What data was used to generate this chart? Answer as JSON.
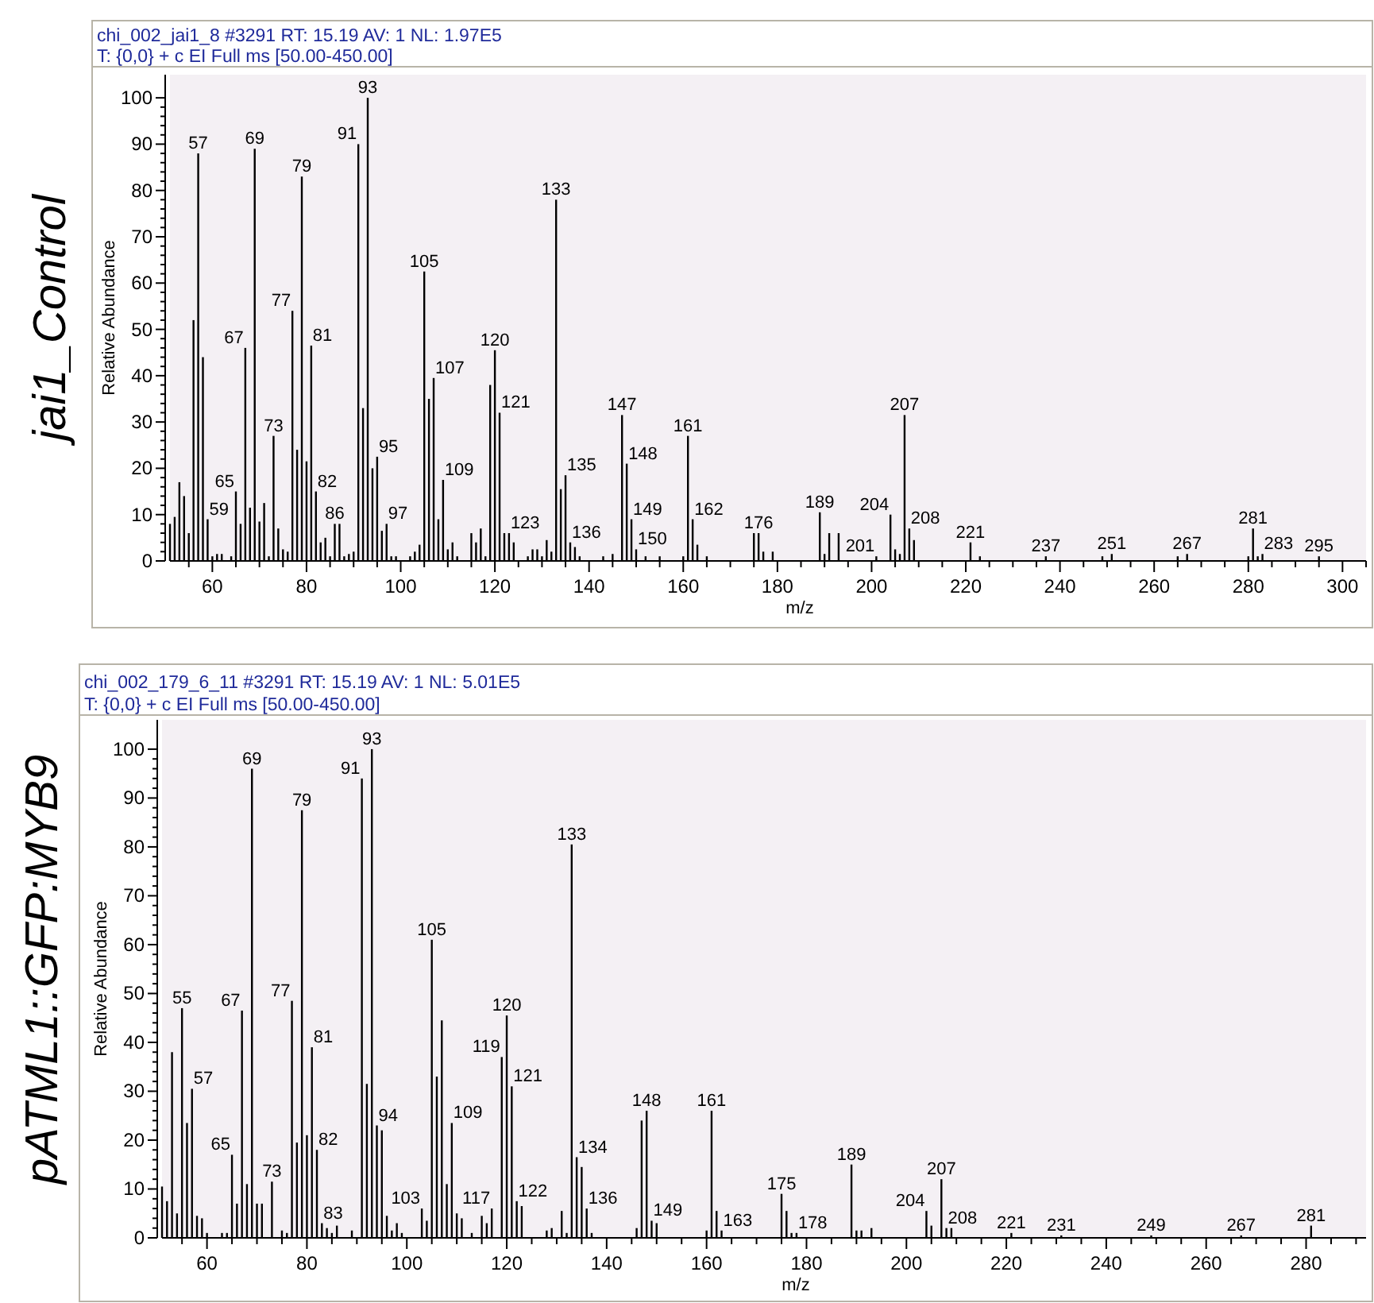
{
  "chart_data": [
    {
      "type": "bar",
      "title": "chi_002_jai1_8 #3291   RT: 15.19   AV: 1   NL: 1.97E5",
      "subtitle": "T: {0,0}  + c EI Full ms [50.00-450.00]",
      "ylabel": "Relative Abundance",
      "xlabel": "m/z",
      "color": "#000000",
      "annotations": [
        "jai1_Control",
        {
          "text": "57",
          "x": 57,
          "y": 88
        },
        {
          "text": "59",
          "x": 59,
          "y": 9
        },
        {
          "text": "65",
          "x": 65,
          "y": 15
        },
        {
          "text": "67",
          "x": 67,
          "y": 46
        },
        {
          "text": "69",
          "x": 69,
          "y": 89
        },
        {
          "text": "73",
          "x": 73,
          "y": 27
        },
        {
          "text": "77",
          "x": 77,
          "y": 54
        },
        {
          "text": "79",
          "x": 79,
          "y": 83
        },
        {
          "text": "81",
          "x": 81,
          "y": 46.5
        },
        {
          "text": "82",
          "x": 82,
          "y": 15
        },
        {
          "text": "86",
          "x": 86,
          "y": 8
        },
        {
          "text": "91",
          "x": 91,
          "y": 90
        },
        {
          "text": "93",
          "x": 93,
          "y": 100
        },
        {
          "text": "95",
          "x": 95,
          "y": 22.5
        },
        {
          "text": "97",
          "x": 97,
          "y": 8
        },
        {
          "text": "105",
          "x": 105,
          "y": 62.5
        },
        {
          "text": "107",
          "x": 107,
          "y": 39.5
        },
        {
          "text": "109",
          "x": 109,
          "y": 17.5
        },
        {
          "text": "120",
          "x": 120,
          "y": 45.5
        },
        {
          "text": "121",
          "x": 121,
          "y": 32
        },
        {
          "text": "123",
          "x": 123,
          "y": 6
        },
        {
          "text": "133",
          "x": 133,
          "y": 78
        },
        {
          "text": "135",
          "x": 135,
          "y": 18.5
        },
        {
          "text": "136",
          "x": 136,
          "y": 4
        },
        {
          "text": "147",
          "x": 147,
          "y": 31.5
        },
        {
          "text": "148",
          "x": 148,
          "y": 21
        },
        {
          "text": "149",
          "x": 149,
          "y": 9
        },
        {
          "text": "150",
          "x": 150,
          "y": 2.5
        },
        {
          "text": "161",
          "x": 161,
          "y": 27
        },
        {
          "text": "162",
          "x": 162,
          "y": 9
        },
        {
          "text": "176",
          "x": 176,
          "y": 6
        },
        {
          "text": "189",
          "x": 189,
          "y": 10.5
        },
        {
          "text": "201",
          "x": 201,
          "y": 1
        },
        {
          "text": "204",
          "x": 204,
          "y": 10
        },
        {
          "text": "207",
          "x": 207,
          "y": 31.5
        },
        {
          "text": "208",
          "x": 208,
          "y": 7
        },
        {
          "text": "221",
          "x": 221,
          "y": 4
        },
        {
          "text": "237",
          "x": 237,
          "y": 1
        },
        {
          "text": "251",
          "x": 251,
          "y": 1.5
        },
        {
          "text": "267",
          "x": 267,
          "y": 1.5
        },
        {
          "text": "281",
          "x": 281,
          "y": 7
        },
        {
          "text": "283",
          "x": 283,
          "y": 1.5
        },
        {
          "text": "295",
          "x": 295,
          "y": 1
        }
      ],
      "x": [
        51,
        52,
        53,
        54,
        55,
        56,
        57,
        58,
        59,
        60,
        61,
        62,
        64,
        65,
        66,
        67,
        68,
        69,
        70,
        71,
        72,
        73,
        74,
        75,
        76,
        77,
        78,
        79,
        80,
        81,
        82,
        83,
        84,
        85,
        86,
        87,
        88,
        89,
        90,
        91,
        92,
        93,
        94,
        95,
        96,
        97,
        98,
        99,
        102,
        103,
        104,
        105,
        106,
        107,
        108,
        109,
        110,
        111,
        112,
        115,
        116,
        117,
        118,
        119,
        120,
        121,
        122,
        123,
        124,
        127,
        128,
        129,
        130,
        131,
        132,
        133,
        134,
        135,
        136,
        137,
        138,
        143,
        145,
        147,
        148,
        149,
        150,
        152,
        155,
        160,
        161,
        162,
        163,
        165,
        175,
        176,
        177,
        179,
        189,
        190,
        191,
        193,
        201,
        204,
        205,
        206,
        207,
        208,
        209,
        221,
        223,
        237,
        249,
        251,
        265,
        267,
        280,
        281,
        282,
        283,
        295
      ],
      "values": [
        8,
        9.5,
        17,
        14,
        6,
        52,
        88,
        44,
        9,
        1,
        1.5,
        1.5,
        1,
        15,
        8,
        46,
        11.5,
        89,
        8.5,
        12.5,
        1,
        27,
        7,
        2.5,
        2,
        54,
        24,
        83,
        21.5,
        46.5,
        15,
        4,
        5,
        1,
        8,
        8,
        1,
        1.5,
        2,
        90,
        33,
        100,
        20,
        22.5,
        6.5,
        8,
        1,
        1,
        1,
        2,
        3.5,
        62.5,
        35,
        39.5,
        9,
        17.5,
        2.5,
        4,
        1,
        6,
        4,
        7,
        1,
        38,
        45.5,
        32,
        6,
        6,
        4,
        1,
        2.5,
        2.5,
        1,
        4.5,
        2,
        78,
        15.5,
        18.5,
        4,
        3,
        1,
        1,
        1.5,
        31.5,
        21,
        9,
        2.5,
        1,
        1,
        1,
        27,
        9,
        3.5,
        1,
        6,
        6,
        2,
        2,
        10.5,
        1.5,
        6,
        6,
        1,
        10,
        2.5,
        1.5,
        31.5,
        7,
        4.5,
        4,
        1,
        1,
        1,
        1.5,
        1,
        1.5,
        1,
        7,
        1,
        1.5,
        1
      ],
      "xlim": [
        51,
        305
      ],
      "ylim": [
        0,
        105
      ],
      "xticks": [
        {
          "value": 55,
          "label": null
        },
        60,
        {
          "value": 65,
          "label": null
        },
        {
          "value": 70,
          "label": null
        },
        {
          "value": 75,
          "label": null
        },
        80,
        {
          "value": 85,
          "label": null
        },
        {
          "value": 90,
          "label": null
        },
        {
          "value": 95,
          "label": null
        },
        100,
        {
          "value": 105,
          "label": null
        },
        {
          "value": 110,
          "label": null
        },
        {
          "value": 115,
          "label": null
        },
        120,
        {
          "value": 125,
          "label": null
        },
        {
          "value": 130,
          "label": null
        },
        {
          "value": 135,
          "label": null
        },
        140,
        {
          "value": 145,
          "label": null
        },
        {
          "value": 150,
          "label": null
        },
        {
          "value": 155,
          "label": null
        },
        160,
        {
          "value": 165,
          "label": null
        },
        {
          "value": 170,
          "label": null
        },
        {
          "value": 175,
          "label": null
        },
        180,
        {
          "value": 185,
          "label": null
        },
        {
          "value": 190,
          "label": null
        },
        {
          "value": 195,
          "label": null
        },
        200,
        {
          "value": 205,
          "label": null
        },
        {
          "value": 210,
          "label": null
        },
        {
          "value": 215,
          "label": null
        },
        220,
        {
          "value": 225,
          "label": null
        },
        {
          "value": 230,
          "label": null
        },
        {
          "value": 235,
          "label": null
        },
        240,
        {
          "value": 245,
          "label": null
        },
        {
          "value": 250,
          "label": null
        },
        {
          "value": 255,
          "label": null
        },
        260,
        {
          "value": 265,
          "label": null
        },
        {
          "value": 270,
          "label": null
        },
        {
          "value": 275,
          "label": null
        },
        280,
        {
          "value": 285,
          "label": null
        },
        {
          "value": 290,
          "label": null
        },
        {
          "value": 295,
          "label": null
        },
        300,
        {
          "value": 305,
          "label": null
        }
      ],
      "yticks": [
        0,
        {
          "value": 2,
          "label": null
        },
        {
          "value": 4,
          "label": null
        },
        {
          "value": 6,
          "label": null
        },
        {
          "value": 8,
          "label": null
        },
        10,
        {
          "value": 12,
          "label": null
        },
        {
          "value": 14,
          "label": null
        },
        {
          "value": 16,
          "label": null
        },
        {
          "value": 18,
          "label": null
        },
        20,
        {
          "value": 22,
          "label": null
        },
        {
          "value": 24,
          "label": null
        },
        {
          "value": 26,
          "label": null
        },
        {
          "value": 28,
          "label": null
        },
        30,
        {
          "value": 32,
          "label": null
        },
        {
          "value": 34,
          "label": null
        },
        {
          "value": 36,
          "label": null
        },
        {
          "value": 38,
          "label": null
        },
        40,
        {
          "value": 42,
          "label": null
        },
        {
          "value": 44,
          "label": null
        },
        {
          "value": 46,
          "label": null
        },
        {
          "value": 48,
          "label": null
        },
        50,
        {
          "value": 52,
          "label": null
        },
        {
          "value": 54,
          "label": null
        },
        {
          "value": 56,
          "label": null
        },
        {
          "value": 58,
          "label": null
        },
        60,
        {
          "value": 62,
          "label": null
        },
        {
          "value": 64,
          "label": null
        },
        {
          "value": 66,
          "label": null
        },
        {
          "value": 68,
          "label": null
        },
        70,
        {
          "value": 72,
          "label": null
        },
        {
          "value": 74,
          "label": null
        },
        {
          "value": 76,
          "label": null
        },
        {
          "value": 78,
          "label": null
        },
        80,
        {
          "value": 82,
          "label": null
        },
        {
          "value": 84,
          "label": null
        },
        {
          "value": 86,
          "label": null
        },
        {
          "value": 88,
          "label": null
        },
        90,
        {
          "value": 92,
          "label": null
        },
        {
          "value": 94,
          "label": null
        },
        {
          "value": 96,
          "label": null
        },
        {
          "value": 98,
          "label": null
        },
        100
      ]
    },
    {
      "type": "bar",
      "title": "chi_002_179_6_11 #3291   RT: 15.19   AV: 1   NL: 5.01E5",
      "subtitle": "T: {0,0}  + c EI Full ms [50.00-450.00]",
      "ylabel": "Relative Abundance",
      "xlabel": "m/z",
      "color": "#000000",
      "annotations": [
        "pATML1::GFP:MYB9",
        {
          "text": "55",
          "x": 55,
          "y": 47
        },
        {
          "text": "57",
          "x": 57,
          "y": 30.5
        },
        {
          "text": "65",
          "x": 65,
          "y": 17
        },
        {
          "text": "67",
          "x": 67,
          "y": 46.5
        },
        {
          "text": "69",
          "x": 69,
          "y": 96
        },
        {
          "text": "73",
          "x": 73,
          "y": 11.5
        },
        {
          "text": "77",
          "x": 77,
          "y": 48.5
        },
        {
          "text": "79",
          "x": 79,
          "y": 87.5
        },
        {
          "text": "81",
          "x": 81,
          "y": 39
        },
        {
          "text": "82",
          "x": 82,
          "y": 18
        },
        {
          "text": "83",
          "x": 83,
          "y": 3
        },
        {
          "text": "91",
          "x": 91,
          "y": 94
        },
        {
          "text": "93",
          "x": 93,
          "y": 100
        },
        {
          "text": "94",
          "x": 94,
          "y": 23
        },
        {
          "text": "103",
          "x": 103,
          "y": 6
        },
        {
          "text": "105",
          "x": 105,
          "y": 61
        },
        {
          "text": "109",
          "x": 109,
          "y": 23.5
        },
        {
          "text": "117",
          "x": 117,
          "y": 6
        },
        {
          "text": "119",
          "x": 119,
          "y": 37
        },
        {
          "text": "120",
          "x": 120,
          "y": 45.5
        },
        {
          "text": "121",
          "x": 121,
          "y": 31
        },
        {
          "text": "122",
          "x": 122,
          "y": 7.5
        },
        {
          "text": "133",
          "x": 133,
          "y": 80.5
        },
        {
          "text": "134",
          "x": 134,
          "y": 16.5
        },
        {
          "text": "136",
          "x": 136,
          "y": 6
        },
        {
          "text": "148",
          "x": 148,
          "y": 26
        },
        {
          "text": "149",
          "x": 149,
          "y": 3.5
        },
        {
          "text": "161",
          "x": 161,
          "y": 26
        },
        {
          "text": "163",
          "x": 163,
          "y": 1.5
        },
        {
          "text": "175",
          "x": 175,
          "y": 9
        },
        {
          "text": "178",
          "x": 178,
          "y": 1
        },
        {
          "text": "189",
          "x": 189,
          "y": 15
        },
        {
          "text": "204",
          "x": 204,
          "y": 5.5
        },
        {
          "text": "207",
          "x": 207,
          "y": 12
        },
        {
          "text": "208",
          "x": 208,
          "y": 2
        },
        {
          "text": "221",
          "x": 221,
          "y": 1
        },
        {
          "text": "231",
          "x": 231,
          "y": 0.5
        },
        {
          "text": "249",
          "x": 249,
          "y": 0.5
        },
        {
          "text": "267",
          "x": 267,
          "y": 0.5
        },
        {
          "text": "281",
          "x": 281,
          "y": 2.5
        }
      ],
      "x": [
        51,
        52,
        53,
        54,
        55,
        56,
        57,
        58,
        59,
        60,
        63,
        64,
        65,
        66,
        67,
        68,
        69,
        70,
        71,
        73,
        75,
        76,
        77,
        78,
        79,
        80,
        81,
        82,
        83,
        84,
        85,
        86,
        89,
        91,
        92,
        93,
        94,
        95,
        96,
        97,
        98,
        99,
        103,
        104,
        105,
        106,
        107,
        108,
        109,
        110,
        111,
        113,
        115,
        116,
        117,
        119,
        120,
        121,
        122,
        123,
        128,
        129,
        131,
        132,
        133,
        134,
        135,
        136,
        137,
        146,
        147,
        148,
        149,
        150,
        160,
        161,
        162,
        163,
        175,
        176,
        177,
        178,
        189,
        190,
        191,
        193,
        204,
        205,
        207,
        208,
        209,
        221,
        231,
        249,
        267,
        281
      ],
      "values": [
        10.5,
        7.5,
        38,
        5,
        47,
        23.5,
        30.5,
        4.5,
        4,
        1,
        1,
        1,
        17,
        7,
        46.5,
        11,
        96,
        7,
        7,
        11.5,
        1.5,
        1,
        48.5,
        19.5,
        87.5,
        21,
        39,
        18,
        3,
        2,
        1,
        2.5,
        1.5,
        94,
        31.5,
        100,
        23,
        22,
        4.5,
        1.5,
        3,
        1,
        6,
        3.5,
        61,
        33,
        44.5,
        11,
        23.5,
        5,
        4,
        1,
        4.5,
        3,
        6,
        37,
        45.5,
        31,
        7.5,
        6.5,
        1.5,
        2,
        5.5,
        1,
        80.5,
        16.5,
        14.5,
        6,
        1,
        2,
        24,
        26,
        3.5,
        3,
        1.5,
        26,
        5.5,
        1.5,
        9,
        5.5,
        1,
        1,
        15,
        1.5,
        1.5,
        2,
        5.5,
        2.5,
        12,
        2,
        2,
        1,
        0.5,
        0.5,
        0.5,
        2.5
      ],
      "xlim": [
        51,
        292
      ],
      "ylim": [
        0,
        106
      ],
      "xticks": [
        {
          "value": 55,
          "label": null
        },
        60,
        {
          "value": 65,
          "label": null
        },
        {
          "value": 70,
          "label": null
        },
        {
          "value": 75,
          "label": null
        },
        80,
        {
          "value": 85,
          "label": null
        },
        {
          "value": 90,
          "label": null
        },
        {
          "value": 95,
          "label": null
        },
        100,
        {
          "value": 105,
          "label": null
        },
        {
          "value": 110,
          "label": null
        },
        {
          "value": 115,
          "label": null
        },
        120,
        {
          "value": 125,
          "label": null
        },
        {
          "value": 130,
          "label": null
        },
        {
          "value": 135,
          "label": null
        },
        140,
        {
          "value": 145,
          "label": null
        },
        {
          "value": 150,
          "label": null
        },
        {
          "value": 155,
          "label": null
        },
        160,
        {
          "value": 165,
          "label": null
        },
        {
          "value": 170,
          "label": null
        },
        {
          "value": 175,
          "label": null
        },
        180,
        {
          "value": 185,
          "label": null
        },
        {
          "value": 190,
          "label": null
        },
        {
          "value": 195,
          "label": null
        },
        200,
        {
          "value": 205,
          "label": null
        },
        {
          "value": 210,
          "label": null
        },
        {
          "value": 215,
          "label": null
        },
        220,
        {
          "value": 225,
          "label": null
        },
        {
          "value": 230,
          "label": null
        },
        {
          "value": 235,
          "label": null
        },
        240,
        {
          "value": 245,
          "label": null
        },
        {
          "value": 250,
          "label": null
        },
        {
          "value": 255,
          "label": null
        },
        260,
        {
          "value": 265,
          "label": null
        },
        {
          "value": 270,
          "label": null
        },
        {
          "value": 275,
          "label": null
        },
        280,
        {
          "value": 285,
          "label": null
        },
        {
          "value": 290,
          "label": null
        }
      ],
      "yticks": [
        0,
        {
          "value": 2,
          "label": null
        },
        {
          "value": 4,
          "label": null
        },
        {
          "value": 6,
          "label": null
        },
        {
          "value": 8,
          "label": null
        },
        10,
        {
          "value": 12,
          "label": null
        },
        {
          "value": 14,
          "label": null
        },
        {
          "value": 16,
          "label": null
        },
        {
          "value": 18,
          "label": null
        },
        20,
        {
          "value": 22,
          "label": null
        },
        {
          "value": 24,
          "label": null
        },
        {
          "value": 26,
          "label": null
        },
        {
          "value": 28,
          "label": null
        },
        30,
        {
          "value": 32,
          "label": null
        },
        {
          "value": 34,
          "label": null
        },
        {
          "value": 36,
          "label": null
        },
        {
          "value": 38,
          "label": null
        },
        40,
        {
          "value": 42,
          "label": null
        },
        {
          "value": 44,
          "label": null
        },
        {
          "value": 46,
          "label": null
        },
        {
          "value": 48,
          "label": null
        },
        50,
        {
          "value": 52,
          "label": null
        },
        {
          "value": 54,
          "label": null
        },
        {
          "value": 56,
          "label": null
        },
        {
          "value": 58,
          "label": null
        },
        60,
        {
          "value": 62,
          "label": null
        },
        {
          "value": 64,
          "label": null
        },
        {
          "value": 66,
          "label": null
        },
        {
          "value": 68,
          "label": null
        },
        70,
        {
          "value": 72,
          "label": null
        },
        {
          "value": 74,
          "label": null
        },
        {
          "value": 76,
          "label": null
        },
        {
          "value": 78,
          "label": null
        },
        80,
        {
          "value": 82,
          "label": null
        },
        {
          "value": 84,
          "label": null
        },
        {
          "value": 86,
          "label": null
        },
        {
          "value": 88,
          "label": null
        },
        90,
        {
          "value": 92,
          "label": null
        },
        {
          "value": 94,
          "label": null
        },
        {
          "value": 96,
          "label": null
        },
        {
          "value": 98,
          "label": null
        },
        100
      ]
    }
  ]
}
